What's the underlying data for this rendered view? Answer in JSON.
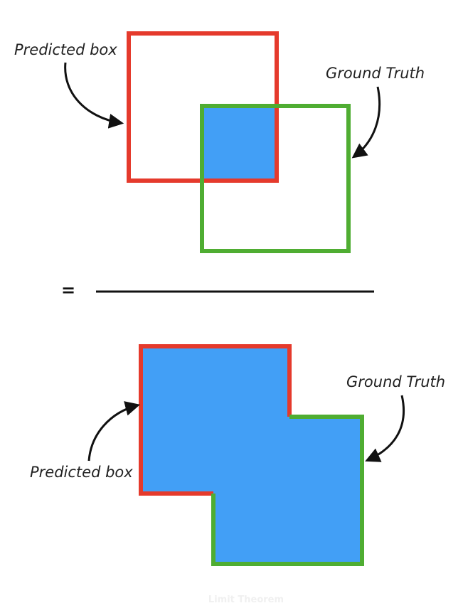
{
  "title": "",
  "colors": {
    "predicted": "#e53a2c",
    "ground_truth": "#4fad32",
    "fill": "#429ff6",
    "arrow": "#111111",
    "text": "#222222",
    "watermark": "#f0f0f0"
  },
  "top": {
    "predicted_label": "Predicted box",
    "ground_truth_label": "Ground Truth"
  },
  "operator": "=",
  "bottom": {
    "predicted_label": "Predicted box",
    "ground_truth_label": "Ground Truth"
  },
  "watermark": "Limit Theorem"
}
